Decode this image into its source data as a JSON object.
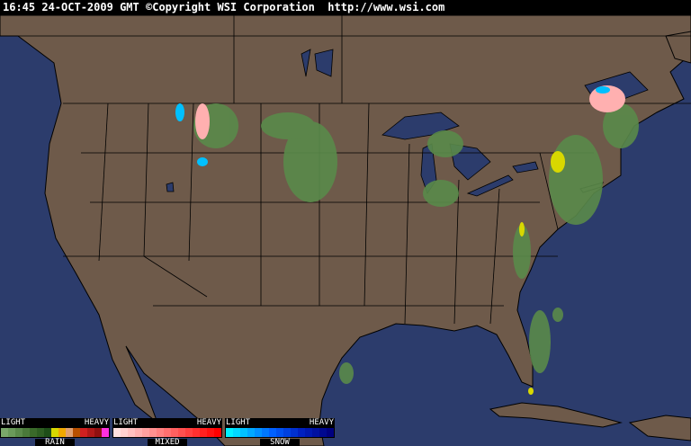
{
  "header": {
    "time": "16:45",
    "date": "24-OCT-2009",
    "timezone": "GMT",
    "copyright": "©Copyright WSI Corporation",
    "url": "http://www.wsi.com"
  },
  "colors": {
    "ocean": "#2c3c6c",
    "land": "#6e5a4a",
    "borders": "#000000",
    "radar_green": "#5a8a4a"
  },
  "legend": [
    {
      "title": "RAIN",
      "light": "LIGHT",
      "heavy": "HEAVY",
      "colors": [
        "#7aa86a",
        "#6a9a5a",
        "#5a8a4a",
        "#4a7a3a",
        "#3a6a2a",
        "#2e5e22",
        "#1e4e18",
        "#d8d800",
        "#f0a800",
        "#e0a070",
        "#b85000",
        "#d02020",
        "#b01818",
        "#901010",
        "#ff30e0"
      ]
    },
    {
      "title": "MIXED",
      "light": "LIGHT",
      "heavy": "HEAVY",
      "colors": [
        "#ffe0e0",
        "#ffd0d0",
        "#ffc0c0",
        "#ffb0b0",
        "#ffa0a0",
        "#ff9090",
        "#ff8080",
        "#ff7070",
        "#ff6060",
        "#ff5050",
        "#ff4040",
        "#ff3030",
        "#ff2020",
        "#ff1010",
        "#ff0000"
      ]
    },
    {
      "title": "SNOW",
      "light": "LIGHT",
      "heavy": "HEAVY",
      "colors": [
        "#00f0ff",
        "#00d8ff",
        "#00c0ff",
        "#00a8ff",
        "#0090ff",
        "#0078ff",
        "#0060ff",
        "#0050f0",
        "#0040e0",
        "#0030d0",
        "#0020c0",
        "#0018b0",
        "#0010a0",
        "#000890",
        "#000080"
      ]
    }
  ]
}
